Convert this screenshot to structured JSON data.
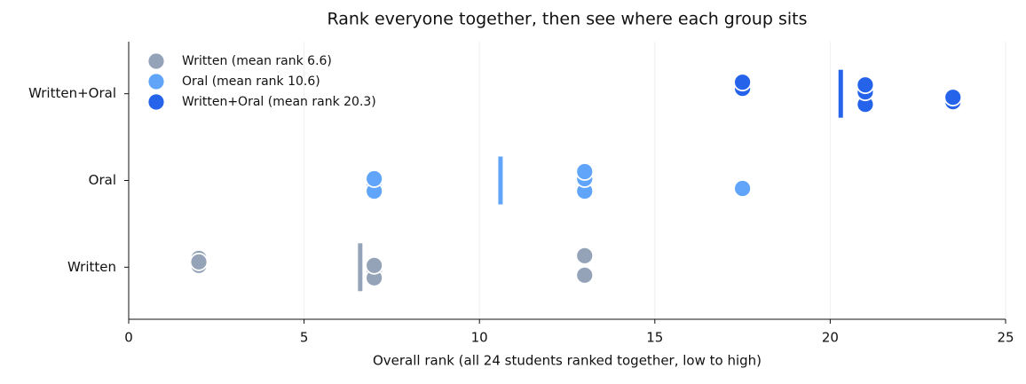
{
  "chart_data": {
    "type": "strip",
    "title": "Rank everyone together, then see where each group sits",
    "xlabel": "Overall rank (all 24 students ranked together, low to high)",
    "categories": [
      "Written",
      "Oral",
      "Written+Oral"
    ],
    "series": [
      {
        "name": "Written (mean rank 6.6)",
        "color": "#94a3b8",
        "values": [
          2,
          2,
          2,
          7,
          7,
          7,
          13,
          13
        ],
        "mean": 6.6
      },
      {
        "name": "Oral (mean rank 10.6)",
        "color": "#60a5fa",
        "values": [
          7,
          7,
          7,
          7,
          13,
          13,
          13,
          17.5
        ],
        "mean": 10.6
      },
      {
        "name": "Written+Oral (mean rank 20.3)",
        "color": "#2563eb",
        "values": [
          17.5,
          17.5,
          17.5,
          21,
          21,
          21,
          23.5,
          23.5
        ],
        "mean": 20.3
      }
    ],
    "xlim": [
      0,
      25
    ],
    "xticks": [
      0,
      5,
      10,
      15,
      20,
      25
    ],
    "grid": true,
    "legend": "upper left"
  }
}
